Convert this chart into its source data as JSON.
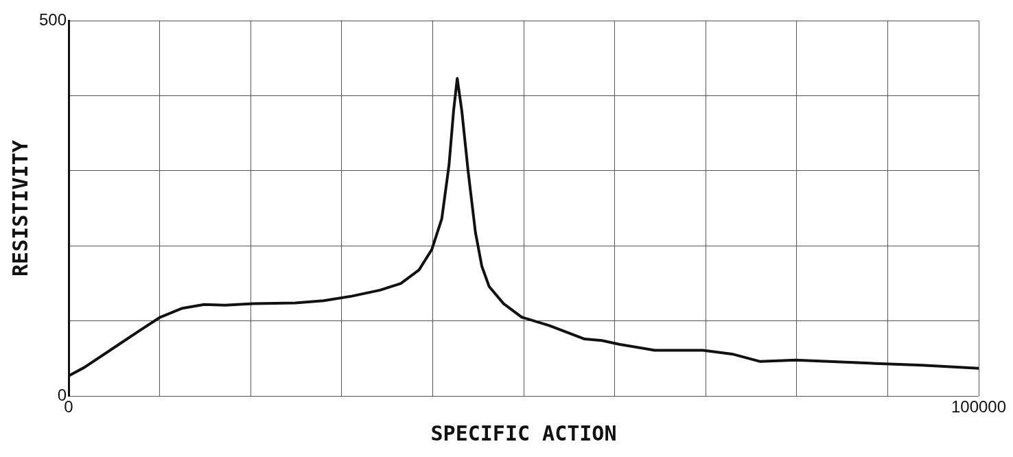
{
  "chart_data": {
    "type": "line",
    "xlabel": "SPECIFIC ACTION",
    "ylabel": "RESISTIVITY",
    "x": [
      0,
      1700,
      4800,
      7900,
      10060,
      12500,
      14900,
      17200,
      20300,
      24900,
      28000,
      31100,
      34200,
      36500,
      38500,
      39900,
      41000,
      41800,
      42300,
      42700,
      43200,
      43900,
      44700,
      45400,
      46200,
      47800,
      49800,
      52800,
      56700,
      58600,
      60500,
      64400,
      69700,
      72900,
      76000,
      79900,
      87600,
      93800,
      100000
    ],
    "series": [
      {
        "color": "#111111",
        "values": [
          27,
          38,
          63,
          88,
          105,
          117,
          122,
          121,
          123,
          124,
          127,
          133,
          141,
          150,
          168,
          195,
          236,
          308,
          380,
          423,
          380,
          299,
          218,
          173,
          146,
          123,
          105,
          94,
          76,
          74,
          69,
          61,
          61,
          56,
          46,
          48,
          44,
          41,
          37
        ]
      }
    ],
    "xlim": [
      0,
      100000
    ],
    "ylim": [
      0,
      500
    ],
    "xticks": [
      0,
      {
        "value": 10000,
        "label": null
      },
      {
        "value": 20000,
        "label": null
      },
      {
        "value": 30000,
        "label": null
      },
      {
        "value": 40000,
        "label": null
      },
      {
        "value": 50000,
        "label": null
      },
      {
        "value": 60000,
        "label": null
      },
      {
        "value": 70000,
        "label": null
      },
      {
        "value": 80000,
        "label": null
      },
      {
        "value": 90000,
        "label": null
      },
      100000
    ],
    "yticks": [
      0,
      {
        "value": 100,
        "label": null
      },
      {
        "value": 200,
        "label": null
      },
      {
        "value": 300,
        "label": null
      },
      {
        "value": 400,
        "label": null
      },
      500
    ],
    "grid": true,
    "legend": false,
    "marker": "none",
    "line_style": "solid"
  }
}
